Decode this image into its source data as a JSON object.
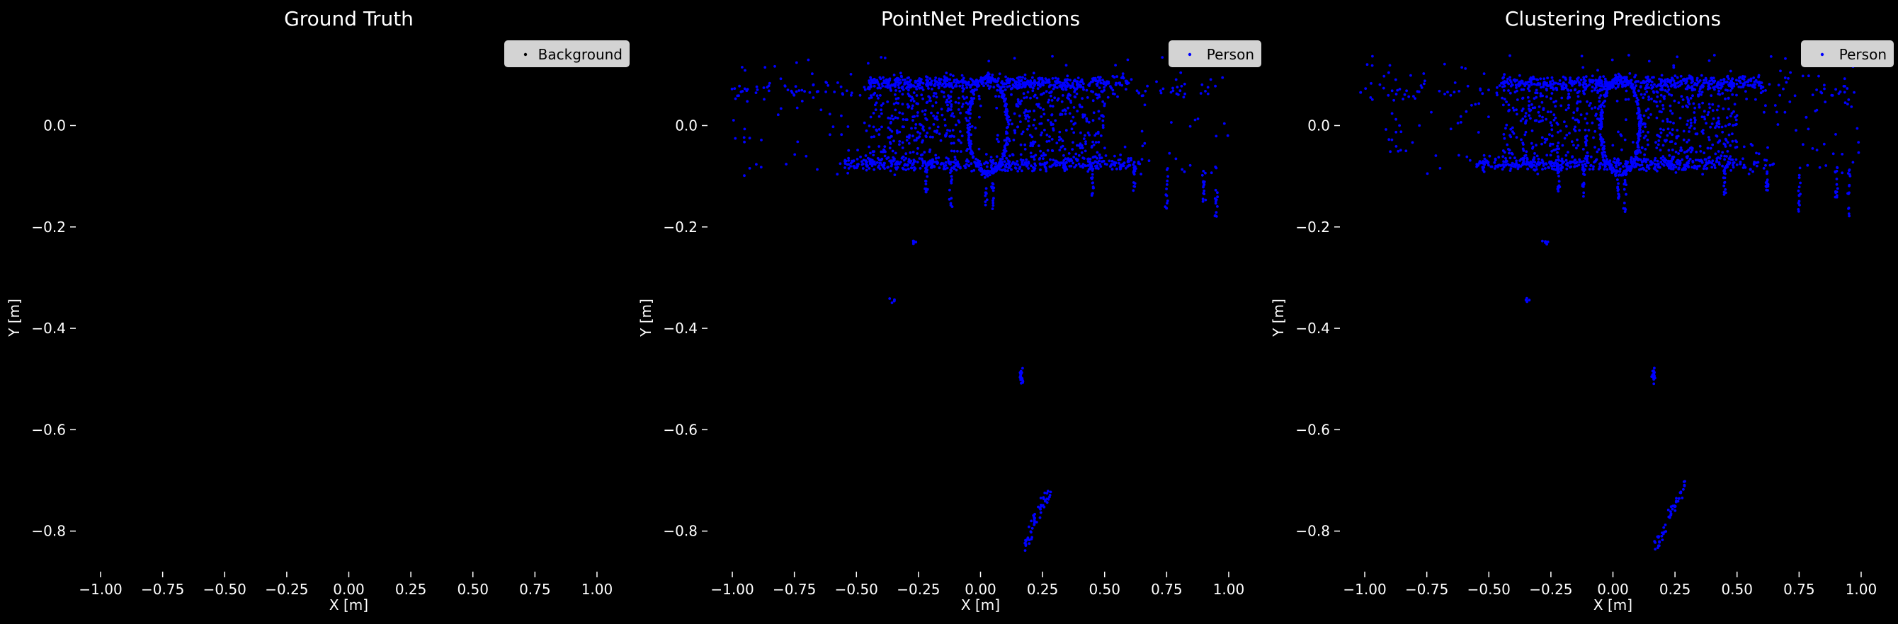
{
  "chart_data": [
    {
      "type": "scatter",
      "title": "Ground Truth",
      "xlabel": "X [m]",
      "ylabel": "Y [m]",
      "xlim": [
        -1.1,
        1.1
      ],
      "ylim": [
        -0.88,
        0.15
      ],
      "xticks": [
        -1.0,
        -0.75,
        -0.5,
        -0.25,
        0.0,
        0.25,
        0.5,
        0.75,
        1.0
      ],
      "xtick_labels": [
        "−1.00",
        "−0.75",
        "−0.50",
        "−0.25",
        "0.00",
        "0.25",
        "0.50",
        "0.75",
        "1.00"
      ],
      "yticks": [
        0.0,
        -0.2,
        -0.4,
        -0.6,
        -0.8
      ],
      "ytick_labels": [
        "0.0",
        "−0.2",
        "−0.4",
        "−0.6",
        "−0.8"
      ],
      "grid": false,
      "legend_position": "top-right",
      "series": [
        {
          "name": "Background",
          "color": "#000000",
          "marker_size": 1,
          "pattern": "none"
        }
      ]
    },
    {
      "type": "scatter",
      "title": "PointNet Predictions",
      "xlabel": "X [m]",
      "ylabel": "Y [m]",
      "xlim": [
        -1.1,
        1.1
      ],
      "ylim": [
        -0.88,
        0.15
      ],
      "xticks": [
        -1.0,
        -0.75,
        -0.5,
        -0.25,
        0.0,
        0.25,
        0.5,
        0.75,
        1.0
      ],
      "xtick_labels": [
        "−1.00",
        "−0.75",
        "−0.50",
        "−0.25",
        "0.00",
        "0.25",
        "0.50",
        "0.75",
        "1.00"
      ],
      "yticks": [
        0.0,
        -0.2,
        -0.4,
        -0.6,
        -0.8
      ],
      "ytick_labels": [
        "0.0",
        "−0.2",
        "−0.4",
        "−0.6",
        "−0.8"
      ],
      "grid": false,
      "legend_position": "top-right",
      "series": [
        {
          "name": "Person",
          "color": "#0000ff",
          "marker_size": 2,
          "pattern": "scene"
        }
      ]
    },
    {
      "type": "scatter",
      "title": "Clustering Predictions",
      "xlabel": "X [m]",
      "ylabel": "Y [m]",
      "xlim": [
        -1.1,
        1.1
      ],
      "ylim": [
        -0.88,
        0.15
      ],
      "xticks": [
        -1.0,
        -0.75,
        -0.5,
        -0.25,
        0.0,
        0.25,
        0.5,
        0.75,
        1.0
      ],
      "xtick_labels": [
        "−1.00",
        "−0.75",
        "−0.50",
        "−0.25",
        "0.00",
        "0.25",
        "0.50",
        "0.75",
        "1.00"
      ],
      "yticks": [
        0.0,
        -0.2,
        -0.4,
        -0.6,
        -0.8
      ],
      "ytick_labels": [
        "0.0",
        "−0.2",
        "−0.4",
        "−0.6",
        "−0.8"
      ],
      "grid": false,
      "legend_position": "top-right",
      "series": [
        {
          "name": "Person",
          "color": "#0000ff",
          "marker_size": 2,
          "pattern": "scene"
        }
      ]
    }
  ],
  "colors": {
    "background": "#000000",
    "text": "#ffffff",
    "legend_background": "#d3d3d3",
    "legend_text": "#000000",
    "person_points": "#0000ff"
  }
}
